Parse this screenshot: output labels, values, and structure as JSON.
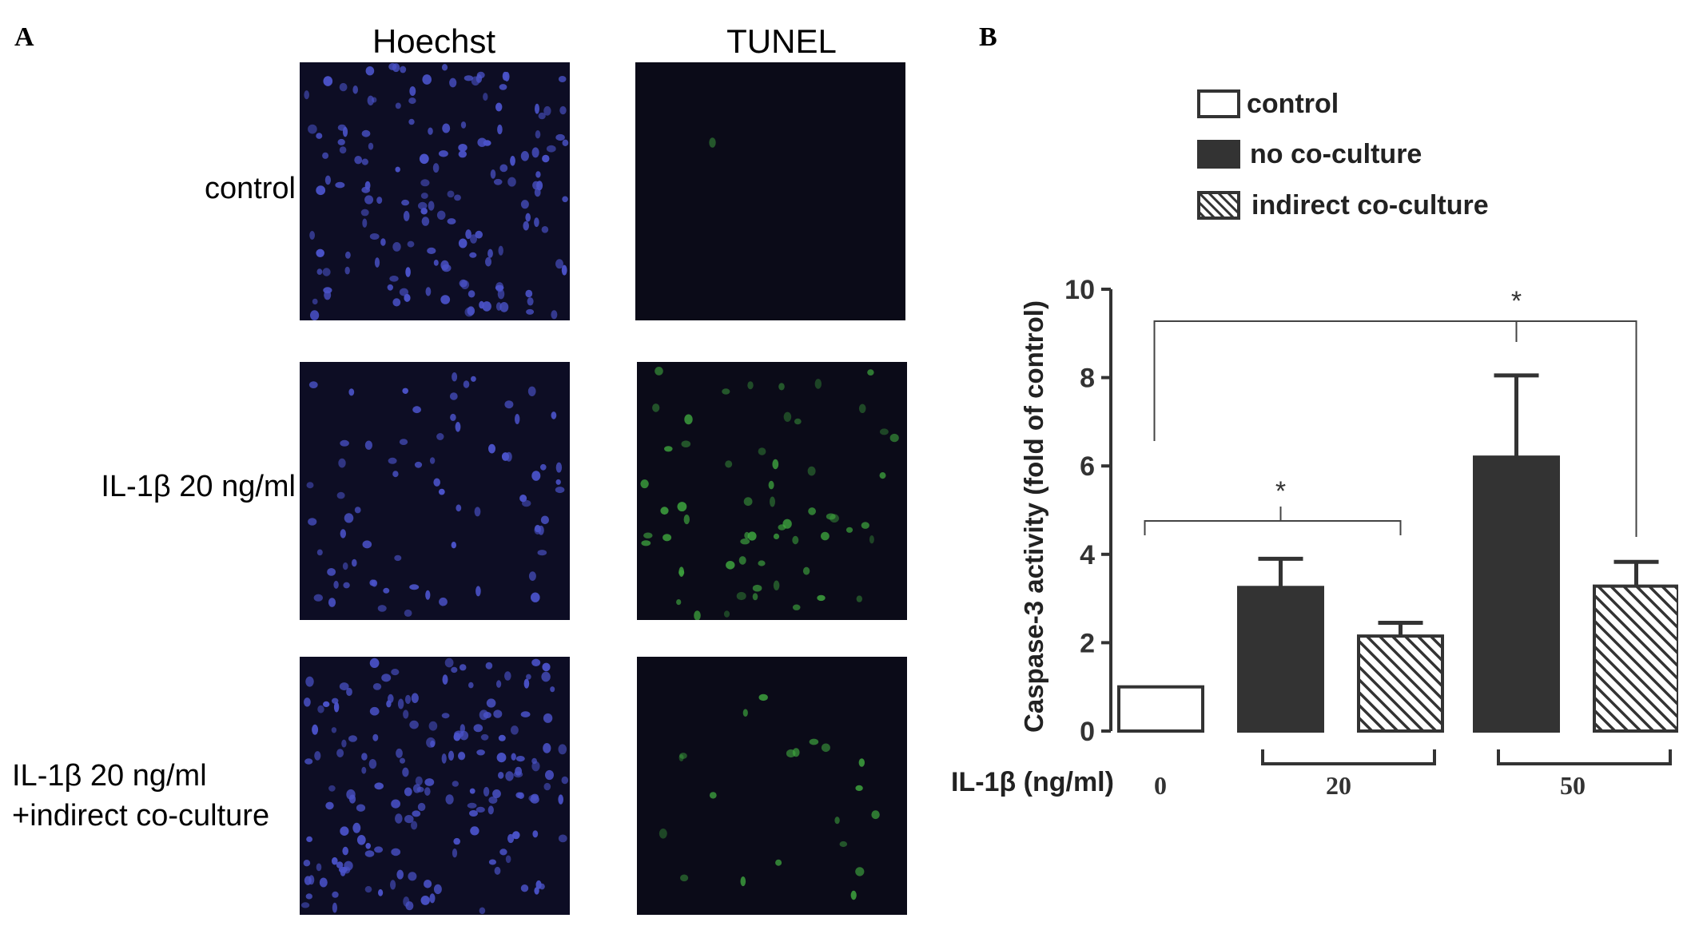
{
  "panels": {
    "a_label": "A",
    "b_label": "B"
  },
  "panel_a": {
    "columns": [
      "Hoechst",
      "TUNEL"
    ],
    "rows": [
      {
        "label_lines": [
          "control"
        ]
      },
      {
        "label_lines": [
          "IL-1β 20 ng/ml"
        ]
      },
      {
        "label_lines": [
          "IL-1β 20 ng/ml",
          "+indirect co-culture"
        ]
      }
    ],
    "colors": {
      "hoechst_nuclei": "#4a52c8",
      "tunel_nuclei": "#3fa83f",
      "background": "#0b0b18"
    }
  },
  "chart_data": {
    "type": "bar",
    "ylabel": "Caspase-3 activity (fold of control)",
    "ylim": [
      0,
      10
    ],
    "yticks": [
      "0",
      "2",
      "4",
      "6",
      "8",
      "10"
    ],
    "xlabel": "IL-1β (ng/ml)",
    "groups": [
      "0",
      "20",
      "50"
    ],
    "legend": [
      {
        "name": "control",
        "style": "open"
      },
      {
        "name": "no co-culture",
        "style": "filled"
      },
      {
        "name": "indirect co-culture",
        "style": "hatched"
      }
    ],
    "legend_placement": "top",
    "bars": [
      {
        "group": "0",
        "series": "control",
        "value": 1.0,
        "error": 0
      },
      {
        "group": "20",
        "series": "no co-culture",
        "value": 3.25,
        "error": 0.65
      },
      {
        "group": "20",
        "series": "indirect co-culture",
        "value": 2.15,
        "error": 0.3
      },
      {
        "group": "50",
        "series": "no co-culture",
        "value": 6.2,
        "error": 1.85
      },
      {
        "group": "50",
        "series": "indirect co-culture",
        "value": 3.28,
        "error": 0.55
      }
    ],
    "significance": [
      {
        "label": "*",
        "from": "control",
        "to": "20 indirect co-culture"
      },
      {
        "label": "*",
        "from": "control",
        "to": "50 indirect co-culture"
      }
    ],
    "colors": {
      "bar_dark": "#333333",
      "stroke": "#333333"
    },
    "grid": false
  }
}
